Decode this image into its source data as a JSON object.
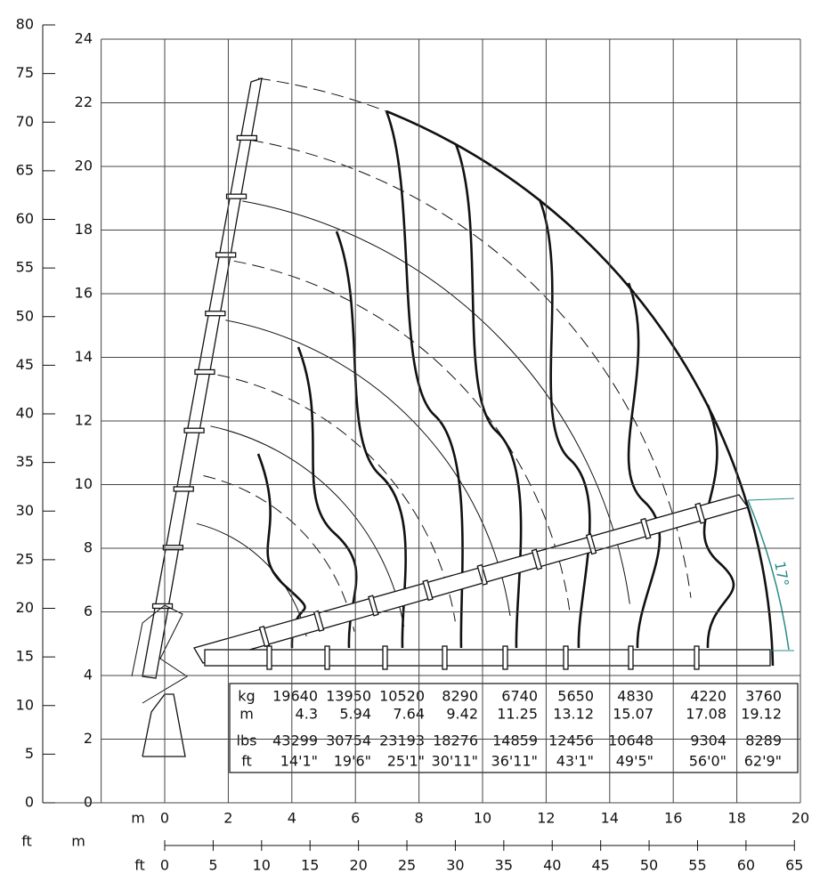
{
  "left_axis": {
    "ticks": [
      0,
      5,
      10,
      15,
      20,
      25,
      30,
      35,
      40,
      45,
      50,
      55,
      60,
      65,
      70,
      75,
      80
    ]
  },
  "height_axis": {
    "ticks": [
      0,
      2,
      4,
      6,
      8,
      10,
      12,
      14,
      16,
      18,
      20,
      22,
      24
    ]
  },
  "x_axis": {
    "unit_label": "m",
    "ticks": [
      0,
      2,
      4,
      6,
      8,
      10,
      12,
      14,
      16,
      18,
      20
    ]
  },
  "bottom_axis": {
    "ft_label": "ft",
    "m_label": "m",
    "unit_label": "ft",
    "ticks": [
      0,
      5,
      10,
      15,
      20,
      25,
      30,
      35,
      40,
      45,
      50,
      55,
      60,
      65
    ]
  },
  "angle_label": "17°",
  "table": {
    "row_labels": [
      "kg",
      "m",
      "lbs",
      "ft"
    ],
    "rows": [
      [
        19640,
        13950,
        10520,
        8290,
        6740,
        5650,
        4830,
        4220,
        3760
      ],
      [
        4.3,
        5.94,
        7.64,
        9.42,
        11.25,
        13.12,
        15.07,
        17.08,
        19.12
      ],
      [
        43299,
        30754,
        23193,
        18276,
        14859,
        12456,
        10648,
        9304,
        8289
      ],
      [
        "14'1\"",
        "19'6\"",
        "25'1\"",
        "30'11\"",
        "36'11\"",
        "43'1\"",
        "49'5\"",
        "56'0\"",
        "62'9\""
      ]
    ]
  }
}
